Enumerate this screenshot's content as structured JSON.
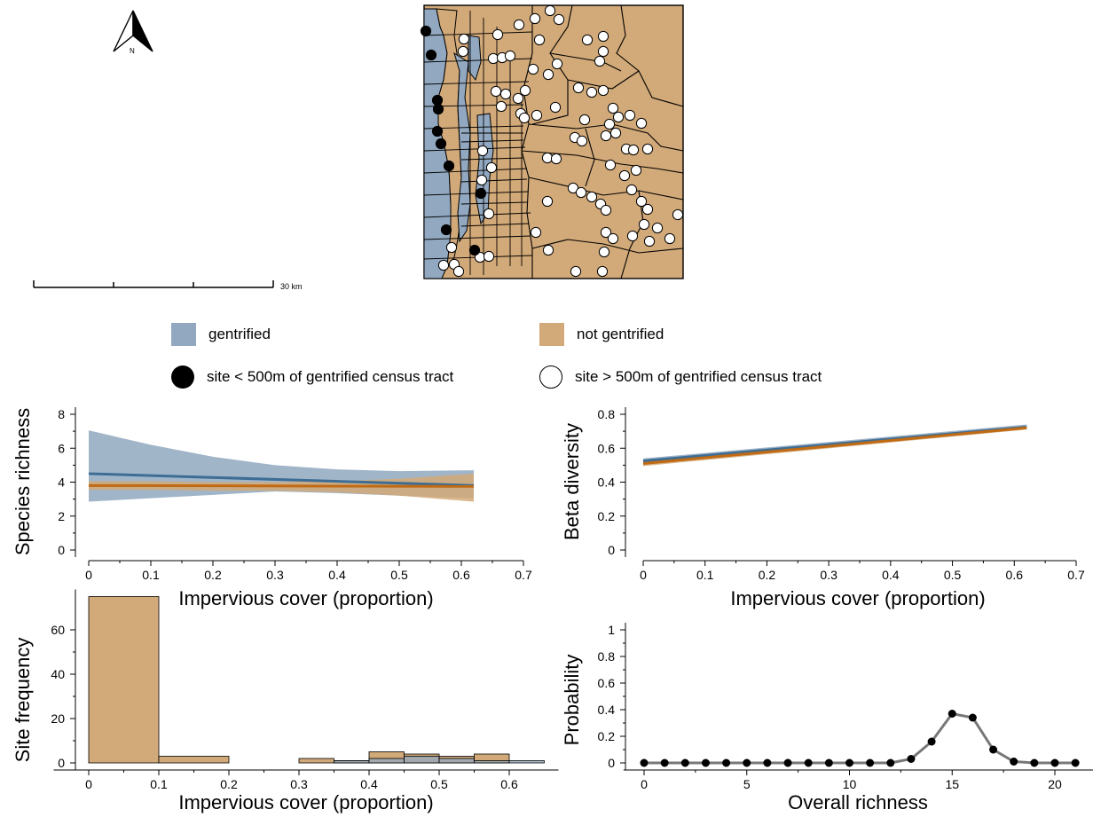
{
  "colors": {
    "gentrified": "#91a8c0",
    "gentrified_line": "#3d6d94",
    "not_gentrified": "#d2a978",
    "not_gentrified_line": "#c06a14",
    "overlap": "#8a8e80",
    "prob_line": "#777777"
  },
  "map": {
    "north_label": "N",
    "scale_label": "30 km",
    "north_icon": "north-arrow-icon",
    "sites_far": [
      [
        620,
        12
      ],
      [
        603,
        21
      ],
      [
        630,
        22
      ],
      [
        585,
        28
      ],
      [
        523,
        44
      ],
      [
        561,
        39
      ],
      [
        608,
        45
      ],
      [
        662,
        45
      ],
      [
        680,
        41
      ],
      [
        680,
        58
      ],
      [
        522,
        58
      ],
      [
        628,
        72
      ],
      [
        676,
        69
      ],
      [
        556,
        66
      ],
      [
        566,
        65
      ],
      [
        575,
        63
      ],
      [
        601,
        78
      ],
      [
        618,
        84
      ],
      [
        592,
        102
      ],
      [
        559,
        103
      ],
      [
        570,
        106
      ],
      [
        584,
        111
      ],
      [
        652,
        99
      ],
      [
        667,
        104
      ],
      [
        680,
        102
      ],
      [
        565,
        120
      ],
      [
        587,
        128
      ],
      [
        591,
        133
      ],
      [
        605,
        130
      ],
      [
        626,
        121
      ],
      [
        691,
        122
      ],
      [
        697,
        132
      ],
      [
        659,
        135
      ],
      [
        710,
        130
      ],
      [
        687,
        140
      ],
      [
        723,
        139
      ],
      [
        694,
        150
      ],
      [
        648,
        155
      ],
      [
        656,
        159
      ],
      [
        683,
        153
      ],
      [
        706,
        168
      ],
      [
        714,
        169
      ],
      [
        688,
        186
      ],
      [
        730,
        168
      ],
      [
        544,
        170
      ],
      [
        554,
        189
      ],
      [
        617,
        178
      ],
      [
        627,
        179
      ],
      [
        704,
        198
      ],
      [
        717,
        192
      ],
      [
        543,
        203
      ],
      [
        646,
        212
      ],
      [
        655,
        217
      ],
      [
        667,
        222
      ],
      [
        712,
        214
      ],
      [
        617,
        227
      ],
      [
        677,
        230
      ],
      [
        683,
        237
      ],
      [
        723,
        227
      ],
      [
        730,
        236
      ],
      [
        764,
        242
      ],
      [
        551,
        241
      ],
      [
        604,
        262
      ],
      [
        683,
        262
      ],
      [
        726,
        253
      ],
      [
        741,
        257
      ],
      [
        691,
        269
      ],
      [
        713,
        266
      ],
      [
        509,
        279
      ],
      [
        541,
        290
      ],
      [
        551,
        289
      ],
      [
        618,
        282
      ],
      [
        681,
        284
      ],
      [
        732,
        272
      ],
      [
        755,
        269
      ],
      [
        512,
        298
      ],
      [
        500,
        299
      ],
      [
        517,
        306
      ],
      [
        649,
        306
      ],
      [
        679,
        306
      ]
    ],
    "sites_near": [
      [
        480,
        35
      ],
      [
        486,
        62
      ],
      [
        493,
        113
      ],
      [
        494,
        123
      ],
      [
        493,
        148
      ],
      [
        497,
        162
      ],
      [
        506,
        187
      ],
      [
        542,
        218
      ],
      [
        503,
        259
      ],
      [
        535,
        282
      ]
    ]
  },
  "legend": {
    "items": [
      {
        "label": "gentrified"
      },
      {
        "label": "not gentrified"
      },
      {
        "label": "site < 500m of gentrified census tract"
      },
      {
        "label": "site > 500m of gentrified census tract"
      }
    ]
  },
  "chart_data": [
    {
      "type": "line",
      "panel": "top-left",
      "xlabel": "Impervious cover (proportion)",
      "ylabel": "Species richness",
      "xlim": [
        0,
        0.7
      ],
      "ylim": [
        0,
        8
      ],
      "xticks": [
        0,
        0.1,
        0.2,
        0.3,
        0.4,
        0.5,
        0.6,
        0.7
      ],
      "yticks": [
        0,
        2,
        4,
        6,
        8
      ],
      "series": [
        {
          "name": "gentrified",
          "x": [
            0,
            0.62
          ],
          "y": [
            4.5,
            3.8
          ],
          "upper": [
            [
              0,
              7.05
            ],
            [
              0.1,
              6.2
            ],
            [
              0.2,
              5.5
            ],
            [
              0.3,
              5.0
            ],
            [
              0.4,
              4.75
            ],
            [
              0.5,
              4.65
            ],
            [
              0.62,
              4.7
            ]
          ],
          "lower": [
            [
              0,
              2.85
            ],
            [
              0.1,
              3.05
            ],
            [
              0.2,
              3.25
            ],
            [
              0.3,
              3.45
            ],
            [
              0.4,
              3.35
            ],
            [
              0.5,
              3.2
            ],
            [
              0.62,
              3.05
            ]
          ]
        },
        {
          "name": "not gentrified",
          "x": [
            0,
            0.62
          ],
          "y": [
            3.8,
            3.75
          ],
          "upper": [
            [
              0,
              4.05
            ],
            [
              0.1,
              4.05
            ],
            [
              0.2,
              4.0
            ],
            [
              0.3,
              4.0
            ],
            [
              0.4,
              4.05
            ],
            [
              0.5,
              4.2
            ],
            [
              0.62,
              4.5
            ]
          ],
          "lower": [
            [
              0,
              3.55
            ],
            [
              0.1,
              3.55
            ],
            [
              0.2,
              3.5
            ],
            [
              0.3,
              3.5
            ],
            [
              0.4,
              3.4
            ],
            [
              0.5,
              3.2
            ],
            [
              0.62,
              2.85
            ]
          ]
        }
      ]
    },
    {
      "type": "line",
      "panel": "top-right",
      "xlabel": "Impervious cover (proportion)",
      "ylabel": "Beta diversity",
      "xlim": [
        0,
        0.7
      ],
      "ylim": [
        0,
        0.8
      ],
      "xticks": [
        0,
        0.1,
        0.2,
        0.3,
        0.4,
        0.5,
        0.6,
        0.7
      ],
      "yticks": [
        0,
        0.2,
        0.4,
        0.6,
        0.8
      ],
      "series": [
        {
          "name": "gentrified",
          "x": [
            0,
            0.62
          ],
          "y": [
            0.525,
            0.725
          ],
          "upper": [
            [
              0,
              0.54
            ],
            [
              0.62,
              0.74
            ]
          ],
          "lower": [
            [
              0,
              0.51
            ],
            [
              0.62,
              0.715
            ]
          ]
        },
        {
          "name": "not gentrified",
          "x": [
            0,
            0.62
          ],
          "y": [
            0.51,
            0.72
          ],
          "upper": [
            [
              0,
              0.525
            ],
            [
              0.62,
              0.73
            ]
          ],
          "lower": [
            [
              0,
              0.495
            ],
            [
              0.62,
              0.71
            ]
          ]
        }
      ]
    },
    {
      "type": "bar",
      "panel": "bottom-left",
      "xlabel": "Impervious cover (proportion)",
      "ylabel": "Site frequency",
      "xlim": [
        -0.05,
        0.7
      ],
      "ylim": [
        0,
        75
      ],
      "xticks": [
        0,
        0.1,
        0.2,
        0.3,
        0.4,
        0.5,
        0.6
      ],
      "yticks": [
        0,
        20,
        40,
        60
      ],
      "series": [
        {
          "name": "not gentrified",
          "bins": [
            [
              0,
              0.1,
              75
            ],
            [
              0.1,
              0.2,
              3
            ],
            [
              0.3,
              0.35,
              2
            ],
            [
              0.35,
              0.4,
              1
            ],
            [
              0.4,
              0.45,
              5
            ],
            [
              0.45,
              0.5,
              4
            ],
            [
              0.5,
              0.55,
              3
            ],
            [
              0.55,
              0.6,
              4
            ]
          ]
        },
        {
          "name": "gentrified",
          "bins": [
            [
              0.35,
              0.4,
              1
            ],
            [
              0.4,
              0.45,
              2
            ],
            [
              0.45,
              0.5,
              3
            ],
            [
              0.5,
              0.55,
              2
            ],
            [
              0.55,
              0.6,
              1
            ],
            [
              0.6,
              0.65,
              1
            ]
          ]
        }
      ]
    },
    {
      "type": "line",
      "panel": "bottom-right",
      "xlabel": "Overall richness",
      "ylabel": "Probability",
      "xlim": [
        -1,
        22
      ],
      "ylim": [
        0,
        1
      ],
      "xticks": [
        0,
        5,
        10,
        15,
        20
      ],
      "yticks": [
        0,
        0.2,
        0.4,
        0.6,
        0.8,
        1
      ],
      "x": [
        0,
        1,
        2,
        3,
        4,
        5,
        6,
        7,
        8,
        9,
        10,
        11,
        12,
        13,
        14,
        15,
        16,
        17,
        18,
        19,
        20,
        21
      ],
      "y": [
        0,
        0,
        0,
        0,
        0,
        0,
        0,
        0,
        0,
        0,
        0,
        0,
        0,
        0.03,
        0.16,
        0.37,
        0.34,
        0.1,
        0.01,
        0,
        0,
        0
      ]
    }
  ]
}
